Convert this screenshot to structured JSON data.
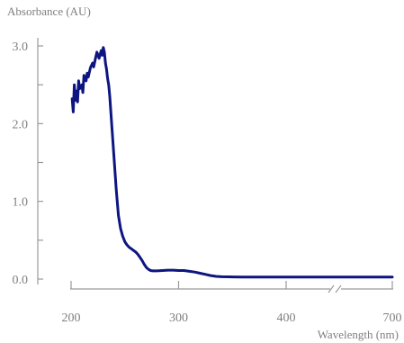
{
  "chart_data": {
    "type": "line",
    "ylabel": "Absorbance (AU)",
    "xlabel": "Wavelength (nm)",
    "ylim": [
      0,
      3.0
    ],
    "xlim": [
      200,
      700
    ],
    "x_axis_break": [
      400,
      700
    ],
    "yticks": [
      {
        "value": 0.0,
        "label": "0.0"
      },
      {
        "value": 1.0,
        "label": "1.0"
      },
      {
        "value": 2.0,
        "label": "2.0"
      },
      {
        "value": 3.0,
        "label": "3.0"
      }
    ],
    "xticks": [
      {
        "value": 200,
        "label": "200"
      },
      {
        "value": 300,
        "label": "300"
      },
      {
        "value": 400,
        "label": "400"
      },
      {
        "value": 700,
        "label": "700"
      }
    ],
    "grid": false,
    "legend": "none",
    "series_color": "#0d1580",
    "series": [
      {
        "x": [
          201,
          202,
          203,
          204,
          205,
          206,
          207,
          208,
          210,
          211,
          212,
          214,
          215,
          216,
          218,
          220,
          221,
          223,
          224,
          226,
          228,
          229,
          230,
          231,
          232,
          233,
          234,
          235,
          236,
          237,
          238,
          240,
          242,
          244,
          246,
          248,
          250,
          252,
          254,
          256,
          258,
          260,
          262,
          264,
          266,
          268,
          270,
          272,
          274,
          276,
          278,
          280,
          285,
          290,
          295,
          300,
          305,
          310,
          315,
          320,
          325,
          330,
          335,
          340,
          350,
          360,
          380,
          400,
          500,
          600,
          700
        ],
        "y": [
          2.32,
          2.15,
          2.5,
          2.3,
          2.42,
          2.28,
          2.55,
          2.45,
          2.5,
          2.4,
          2.62,
          2.55,
          2.65,
          2.6,
          2.72,
          2.78,
          2.73,
          2.86,
          2.92,
          2.84,
          2.94,
          2.88,
          2.98,
          2.92,
          2.78,
          2.7,
          2.58,
          2.5,
          2.35,
          2.15,
          1.95,
          1.55,
          1.15,
          0.82,
          0.65,
          0.55,
          0.48,
          0.44,
          0.41,
          0.39,
          0.37,
          0.35,
          0.32,
          0.28,
          0.24,
          0.19,
          0.15,
          0.125,
          0.11,
          0.105,
          0.105,
          0.105,
          0.11,
          0.115,
          0.115,
          0.11,
          0.11,
          0.1,
          0.09,
          0.075,
          0.06,
          0.045,
          0.035,
          0.03,
          0.028,
          0.027,
          0.026,
          0.025,
          0.025,
          0.025,
          0.025
        ]
      }
    ]
  }
}
